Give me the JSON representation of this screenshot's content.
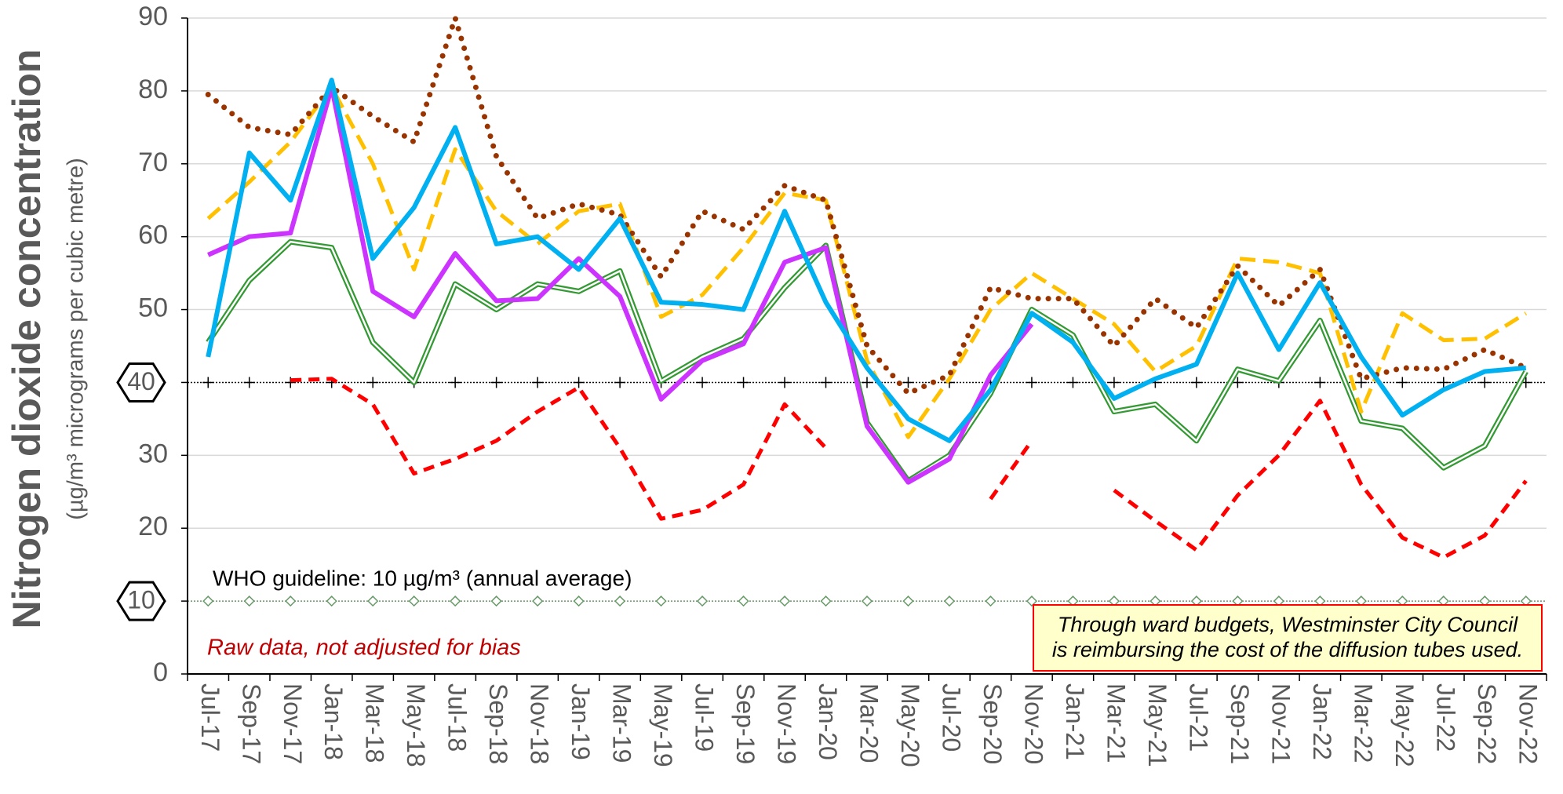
{
  "chart_data": {
    "type": "line",
    "ylabel": "Nitrogen dioxide concentration",
    "ylabel_sub": "(µg/m³ micrograms per cubic metre)",
    "categories": [
      "Jul-17",
      "Sep-17",
      "Nov-17",
      "Jan-18",
      "Mar-18",
      "May-18",
      "Jul-18",
      "Sep-18",
      "Nov-18",
      "Jan-19",
      "Mar-19",
      "May-19",
      "Jul-19",
      "Sep-19",
      "Nov-19",
      "Jan-20",
      "Mar-20",
      "May-20",
      "Jul-20",
      "Sep-20",
      "Nov-20",
      "Jan-21",
      "Mar-21",
      "May-21",
      "Jul-21",
      "Sep-21",
      "Nov-21",
      "Jan-22",
      "Mar-22",
      "May-22",
      "Jul-22",
      "Sep-22",
      "Nov-22"
    ],
    "ylim": [
      0,
      90
    ],
    "yticks": [
      0,
      10,
      20,
      30,
      40,
      50,
      60,
      70,
      80,
      90
    ],
    "grid": true,
    "reference_lines": [
      {
        "value": 40,
        "marker": "plus",
        "color": "#000000"
      },
      {
        "value": 10,
        "marker": "diamond",
        "color": "#669966"
      }
    ],
    "annotations": {
      "who": "WHO guideline: 10 µg/m³ (annual average)",
      "raw": "Raw data, not adjusted for bias",
      "note": [
        "Through ward budgets, Westminster City Council",
        "is reimbursing the cost of the diffusion tubes used."
      ]
    },
    "series": [
      {
        "color": "#ff0000",
        "style": "dashed",
        "values": [
          null,
          null,
          40.3,
          40.5,
          37,
          27.5,
          29.5,
          32,
          36,
          39.3,
          31,
          21.3,
          22.5,
          26,
          37,
          31,
          null,
          null,
          null,
          24,
          32,
          null,
          25.2,
          21,
          17,
          24.5,
          30,
          37.5,
          26,
          18.7,
          16,
          19,
          26.5
        ]
      },
      {
        "color": "#339933",
        "style": "double",
        "values": [
          45.5,
          54,
          59.3,
          58.5,
          45.5,
          40,
          53.5,
          50,
          53.5,
          52.5,
          55.3,
          40.2,
          43.5,
          46,
          53,
          58.8,
          34.5,
          26.5,
          30,
          38.5,
          50,
          46.5,
          36,
          37,
          32,
          41.8,
          40.2,
          48.5,
          34.7,
          33.7,
          28.3,
          31.3,
          41.5
        ]
      },
      {
        "color": "#ffc000",
        "style": "longdash",
        "values": [
          62.5,
          67.5,
          73,
          80.5,
          70,
          55.5,
          72,
          63.5,
          59,
          63.5,
          64.5,
          49,
          52,
          58.5,
          66,
          65,
          43,
          32.5,
          40.5,
          50,
          55,
          51.5,
          48,
          41.5,
          45,
          57,
          56.5,
          55,
          36,
          49.5,
          45.8,
          46,
          49.5
        ]
      },
      {
        "color": "#993300",
        "style": "dotted",
        "values": [
          79.5,
          75,
          74,
          80.5,
          76.5,
          73,
          90,
          71,
          62.5,
          64.5,
          63,
          54.5,
          63.5,
          61,
          67,
          65,
          45,
          38.5,
          41,
          53,
          51.5,
          51.5,
          45,
          51.5,
          47.5,
          56,
          50.5,
          55.5,
          40.5,
          42,
          41.8,
          44.5,
          42
        ]
      },
      {
        "color": "#cc33ff",
        "style": "solid",
        "values": [
          57.5,
          60,
          60.5,
          80.5,
          52.5,
          49,
          57.7,
          51.2,
          51.5,
          57,
          51.8,
          37.7,
          43,
          45.3,
          56.5,
          58.5,
          34,
          26.3,
          29.5,
          41,
          48,
          null,
          null,
          null,
          null,
          null,
          null,
          null,
          null,
          null,
          null,
          null,
          null
        ]
      },
      {
        "color": "#00b0f0",
        "style": "solid",
        "values": [
          43.5,
          71.5,
          65,
          81.5,
          57,
          64,
          75,
          59,
          60,
          55.5,
          62.5,
          51,
          50.7,
          50,
          63.5,
          51,
          42,
          35,
          32,
          39,
          49.5,
          45.5,
          37.8,
          40.5,
          42.5,
          55,
          44.5,
          53.7,
          43.5,
          35.5,
          39,
          41.5,
          42
        ]
      }
    ]
  }
}
